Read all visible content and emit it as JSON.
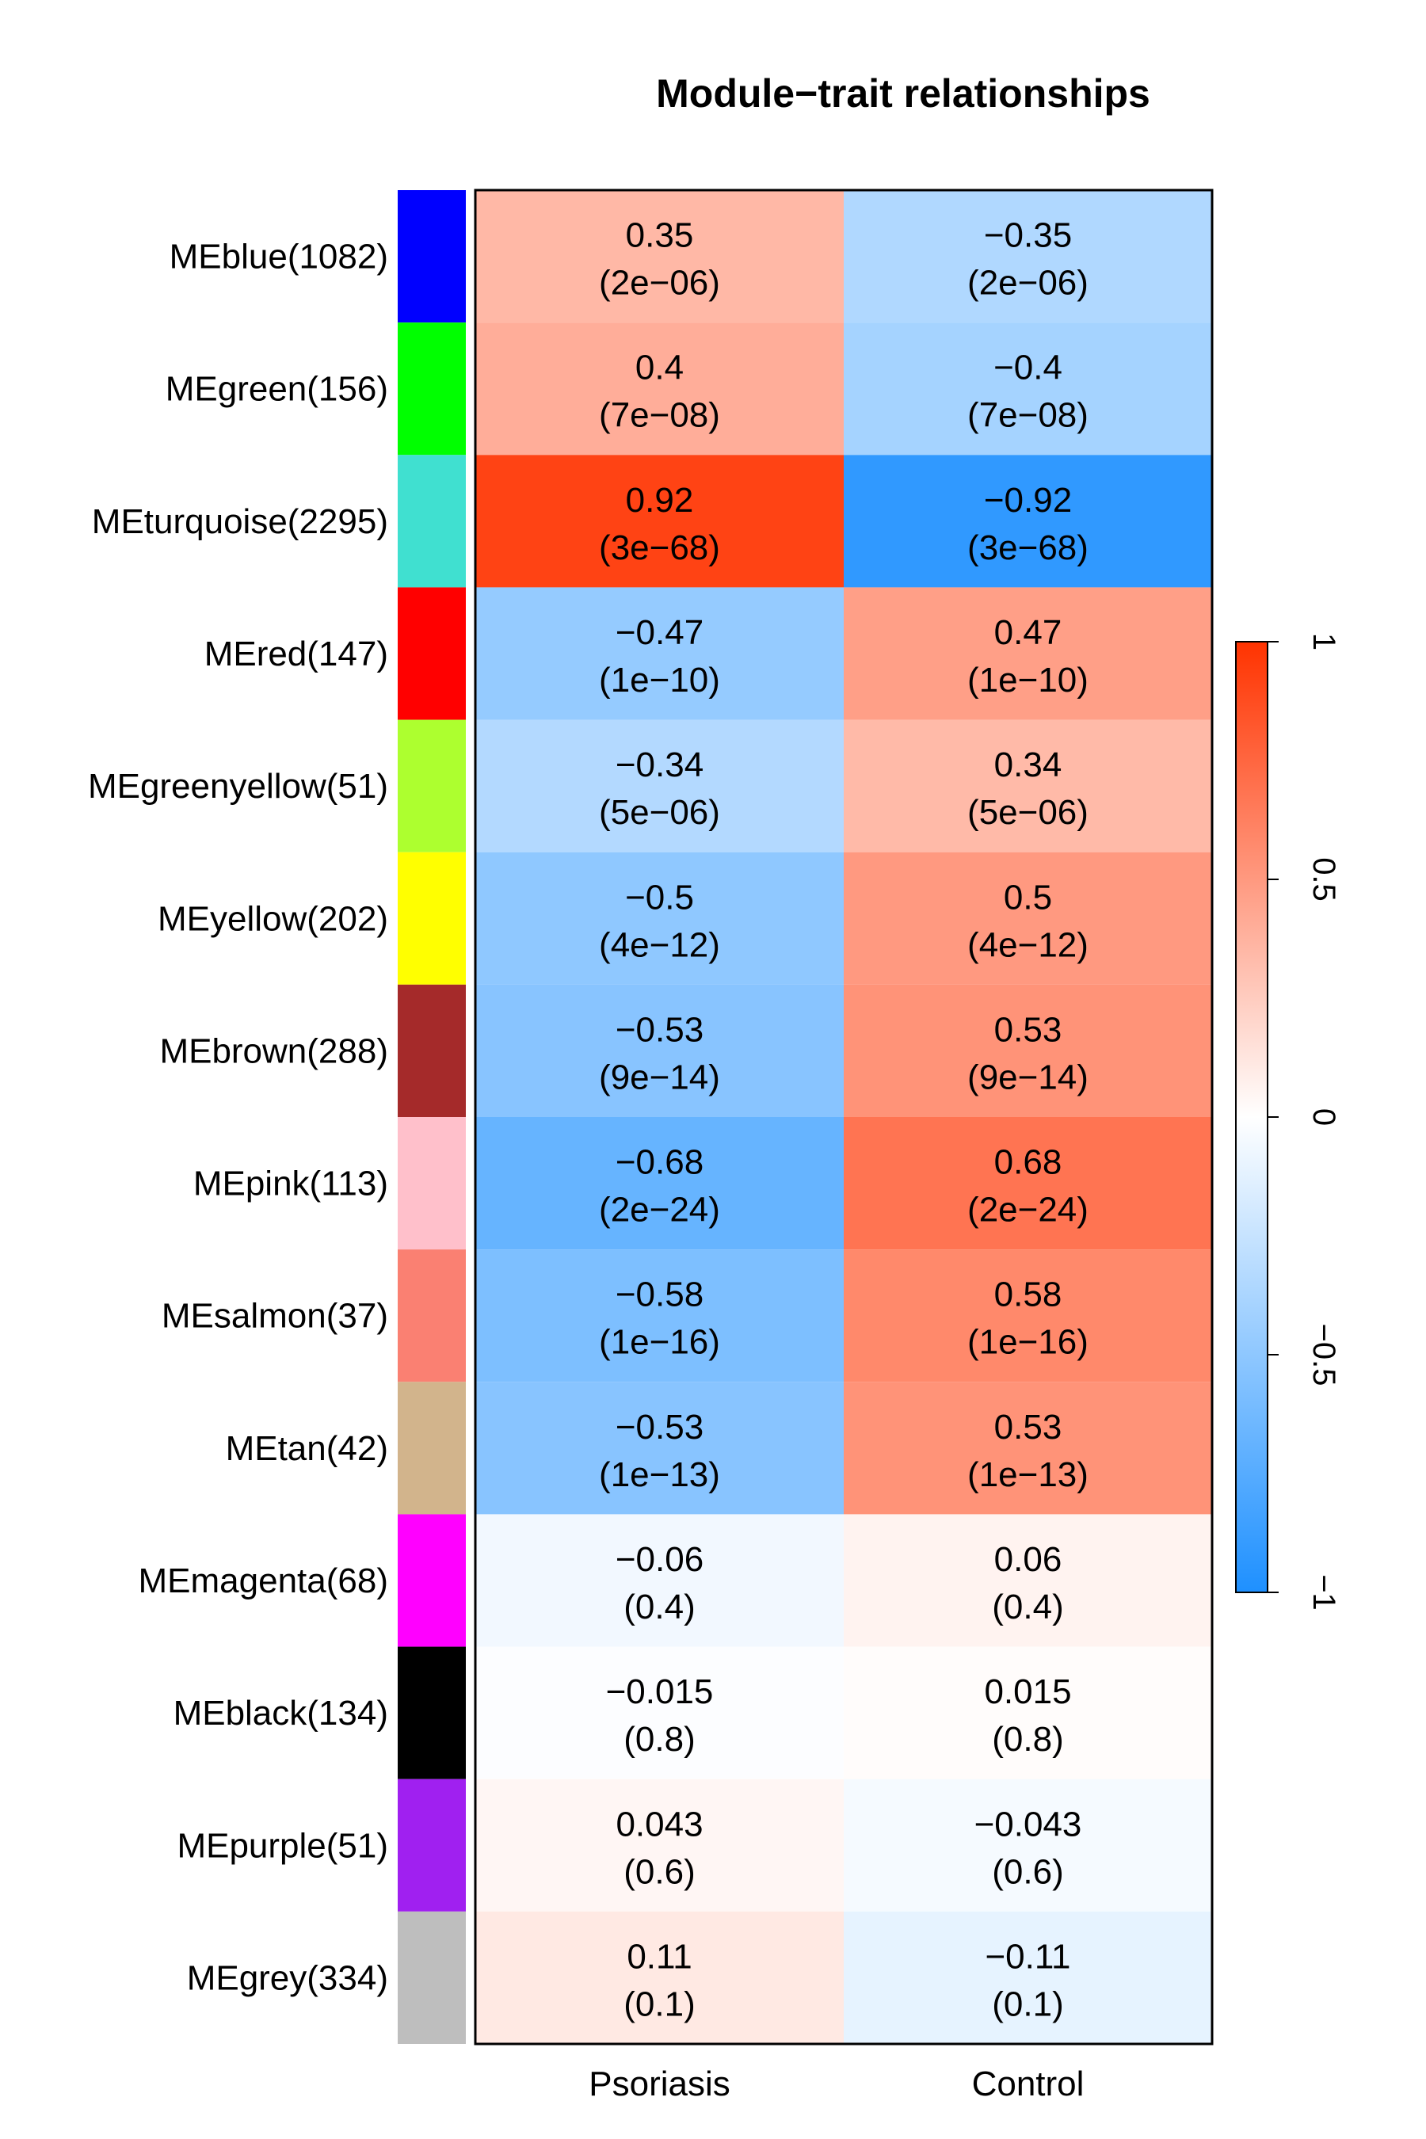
{
  "chart_data": {
    "type": "heatmap",
    "title": "Module−trait relationships",
    "columns": [
      "Psoriasis",
      "Control"
    ],
    "rows": [
      {
        "label": "MEblue(1082)",
        "module_color": "#0000FF",
        "values": [
          0.35,
          -0.35
        ],
        "value_text": [
          "0.35",
          "−0.35"
        ],
        "pvalue_text": [
          "(2e−06)",
          "(2e−06)"
        ]
      },
      {
        "label": "MEgreen(156)",
        "module_color": "#00FF00",
        "values": [
          0.4,
          -0.4
        ],
        "value_text": [
          "0.4",
          "−0.4"
        ],
        "pvalue_text": [
          "(7e−08)",
          "(7e−08)"
        ]
      },
      {
        "label": "MEturquoise(2295)",
        "module_color": "#40E0D0",
        "values": [
          0.92,
          -0.92
        ],
        "value_text": [
          "0.92",
          "−0.92"
        ],
        "pvalue_text": [
          "(3e−68)",
          "(3e−68)"
        ]
      },
      {
        "label": "MEred(147)",
        "module_color": "#FF0000",
        "values": [
          -0.47,
          0.47
        ],
        "value_text": [
          "−0.47",
          "0.47"
        ],
        "pvalue_text": [
          "(1e−10)",
          "(1e−10)"
        ]
      },
      {
        "label": "MEgreenyellow(51)",
        "module_color": "#ADFF2F",
        "values": [
          -0.34,
          0.34
        ],
        "value_text": [
          "−0.34",
          "0.34"
        ],
        "pvalue_text": [
          "(5e−06)",
          "(5e−06)"
        ]
      },
      {
        "label": "MEyellow(202)",
        "module_color": "#FFFF00",
        "values": [
          -0.5,
          0.5
        ],
        "value_text": [
          "−0.5",
          "0.5"
        ],
        "pvalue_text": [
          "(4e−12)",
          "(4e−12)"
        ]
      },
      {
        "label": "MEbrown(288)",
        "module_color": "#A52A2A",
        "values": [
          -0.53,
          0.53
        ],
        "value_text": [
          "−0.53",
          "0.53"
        ],
        "pvalue_text": [
          "(9e−14)",
          "(9e−14)"
        ]
      },
      {
        "label": "MEpink(113)",
        "module_color": "#FFC0CB",
        "values": [
          -0.68,
          0.68
        ],
        "value_text": [
          "−0.68",
          "0.68"
        ],
        "pvalue_text": [
          "(2e−24)",
          "(2e−24)"
        ]
      },
      {
        "label": "MEsalmon(37)",
        "module_color": "#FA8072",
        "values": [
          -0.58,
          0.58
        ],
        "value_text": [
          "−0.58",
          "0.58"
        ],
        "pvalue_text": [
          "(1e−16)",
          "(1e−16)"
        ]
      },
      {
        "label": "MEtan(42)",
        "module_color": "#D2B48C",
        "values": [
          -0.53,
          0.53
        ],
        "value_text": [
          "−0.53",
          "0.53"
        ],
        "pvalue_text": [
          "(1e−13)",
          "(1e−13)"
        ]
      },
      {
        "label": "MEmagenta(68)",
        "module_color": "#FF00FF",
        "values": [
          -0.06,
          0.06
        ],
        "value_text": [
          "−0.06",
          "0.06"
        ],
        "pvalue_text": [
          "(0.4)",
          "(0.4)"
        ]
      },
      {
        "label": "MEblack(134)",
        "module_color": "#000000",
        "values": [
          -0.015,
          0.015
        ],
        "value_text": [
          "−0.015",
          "0.015"
        ],
        "pvalue_text": [
          "(0.8)",
          "(0.8)"
        ]
      },
      {
        "label": "MEpurple(51)",
        "module_color": "#A020F0",
        "values": [
          0.043,
          -0.043
        ],
        "value_text": [
          "0.043",
          "−0.043"
        ],
        "pvalue_text": [
          "(0.6)",
          "(0.6)"
        ]
      },
      {
        "label": "MEgrey(334)",
        "module_color": "#BEBEBE",
        "values": [
          0.11,
          -0.11
        ],
        "value_text": [
          "0.11",
          "−0.11"
        ],
        "pvalue_text": [
          "(0.1)",
          "(0.1)"
        ]
      }
    ],
    "color_scale": {
      "min": -1,
      "max": 1,
      "low_color": "#1E90FF",
      "mid_color": "#FFFFFF",
      "high_color": "#FF3300",
      "ticks": [
        {
          "value": -1,
          "label": "−1"
        },
        {
          "value": -0.5,
          "label": "−0.5"
        },
        {
          "value": 0,
          "label": "0"
        },
        {
          "value": 0.5,
          "label": "0.5"
        },
        {
          "value": 1,
          "label": "1"
        }
      ]
    }
  }
}
